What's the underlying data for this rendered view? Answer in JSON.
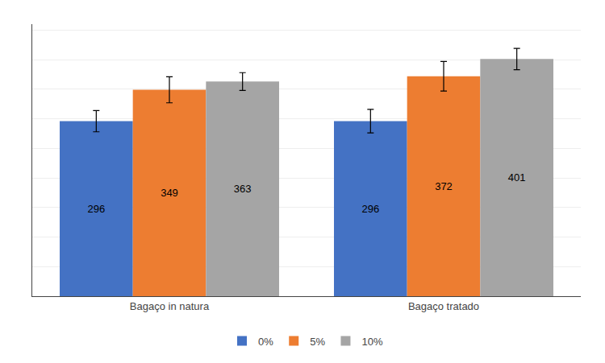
{
  "chart_data": {
    "type": "bar",
    "categories": [
      "Bagaço in natura",
      "Bagaço tratado"
    ],
    "series": [
      {
        "name": "0%",
        "color": "#4472C4",
        "values": [
          296,
          296
        ],
        "errors": [
          18,
          20
        ]
      },
      {
        "name": "5%",
        "color": "#ED7D31",
        "values": [
          349,
          372
        ],
        "errors": [
          22,
          25
        ]
      },
      {
        "name": "10%",
        "color": "#A5A5A5",
        "values": [
          363,
          401
        ],
        "errors": [
          15,
          18
        ]
      }
    ],
    "ylim": [
      0,
      460
    ],
    "yticks": [
      0,
      50,
      100,
      150,
      200,
      250,
      300,
      350,
      400,
      450
    ],
    "grid": true,
    "tick_labels": "x",
    "legend": "bottom",
    "data_labels": true
  }
}
